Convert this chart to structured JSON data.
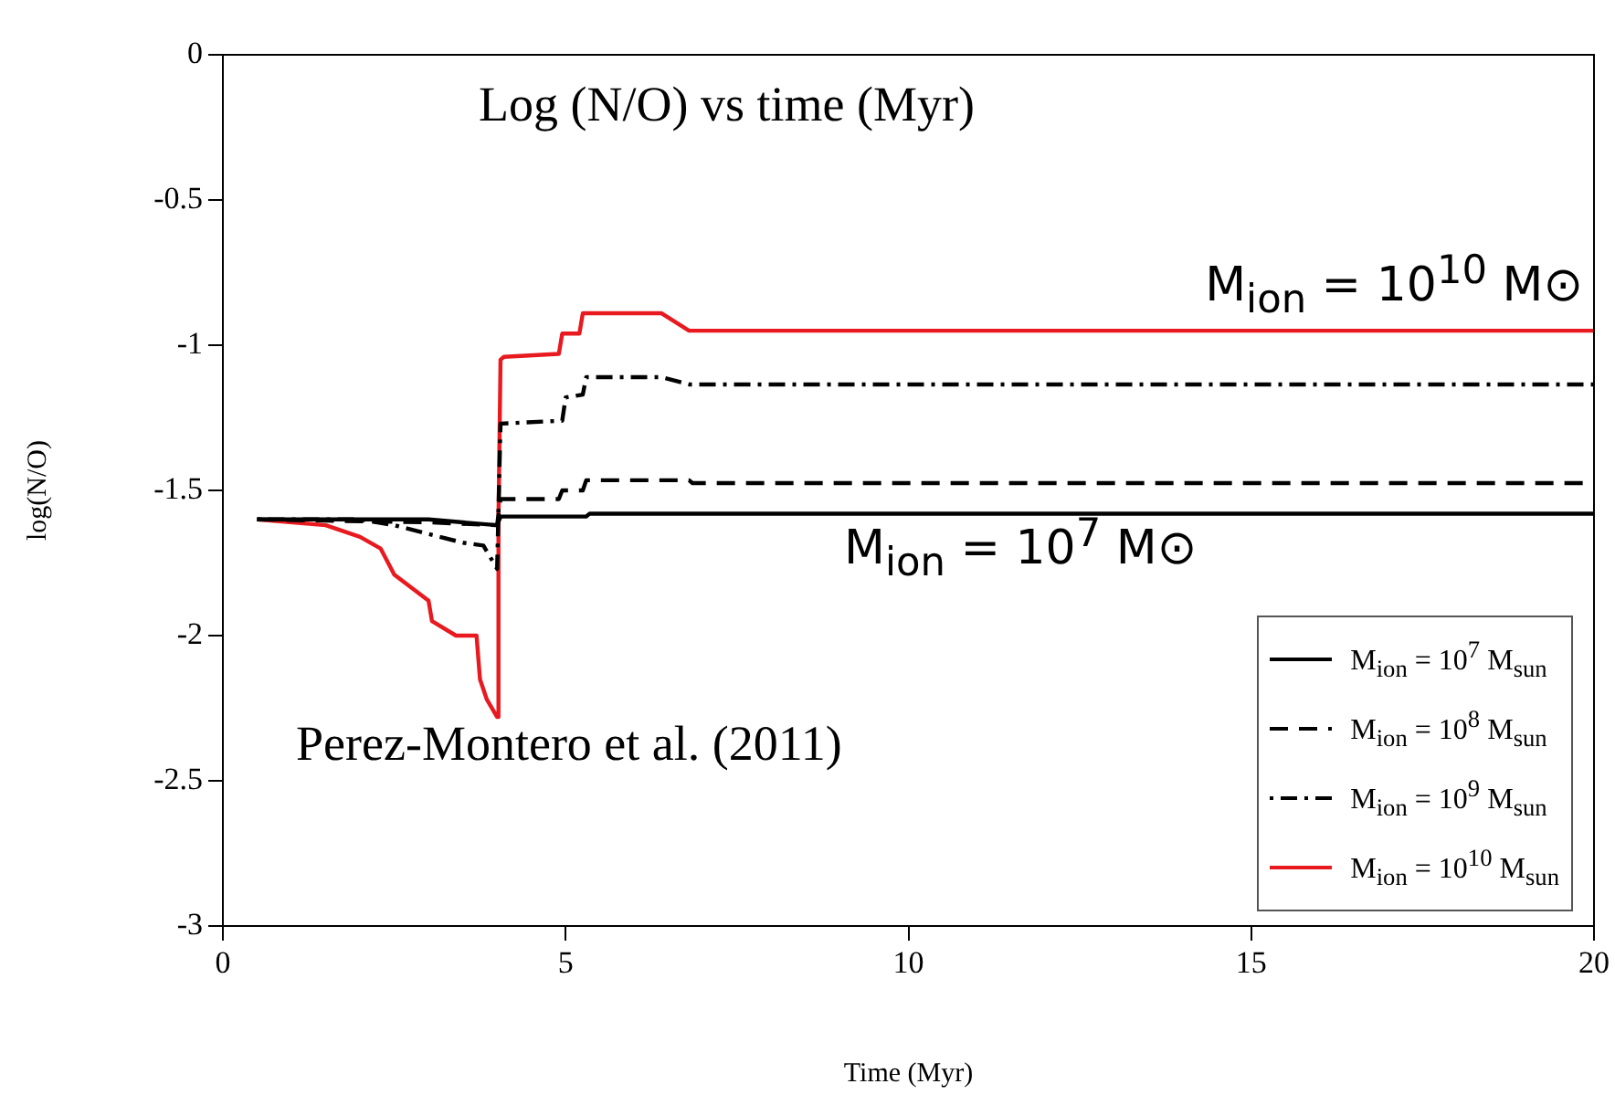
{
  "chart_data": {
    "type": "line",
    "title": "Log (N/O) vs time (Myr)",
    "xlabel": "Time (Myr)",
    "ylabel": "log(N/O)",
    "xlim": [
      0,
      20
    ],
    "xticks": [
      0,
      5,
      10,
      15,
      20
    ],
    "ylim": [
      -3,
      0
    ],
    "yticks": [
      -3,
      -2.5,
      -2,
      -1.5,
      -1,
      -0.5,
      0
    ],
    "grid": false,
    "legend": "bottom right",
    "marker": "none",
    "annotations": [
      "M$_{ion}$ = 10$^{10}$ M⊙",
      "M$_{ion}$ = 10$^{7}$ M⊙",
      "Perez-Montero et al. (2011)"
    ],
    "series": [
      {
        "name": "M$_{ion}$ = 10$^{7}$ M$_{sun}$",
        "color": "#000000",
        "line_style": "solid",
        "x": [
          0.5,
          3.0,
          4.0,
          4.05,
          5.3,
          5.35,
          20
        ],
        "values": [
          -1.6,
          -1.6,
          -1.62,
          -1.59,
          -1.59,
          -1.58,
          -1.58
        ]
      },
      {
        "name": "M$_{ion}$ = 10$^{8}$ M$_{sun}$",
        "color": "#000000",
        "line_style": "dashed",
        "x": [
          0.5,
          3.0,
          4.0,
          4.05,
          4.9,
          4.95,
          5.25,
          5.3,
          6.8,
          6.85,
          20
        ],
        "values": [
          -1.6,
          -1.61,
          -1.62,
          -1.53,
          -1.53,
          -1.5,
          -1.5,
          -1.465,
          -1.465,
          -1.475,
          -1.475
        ]
      },
      {
        "name": "M$_{ion}$ = 10$^{9}$ M$_{sun}$",
        "color": "#000000",
        "line_style": "dotted",
        "x": [
          0.5,
          2.0,
          2.5,
          3.0,
          3.5,
          3.8,
          3.9,
          4.0,
          4.05,
          4.95,
          5.0,
          5.25,
          5.3,
          6.4,
          6.8,
          20
        ],
        "values": [
          -1.6,
          -1.6,
          -1.62,
          -1.65,
          -1.68,
          -1.69,
          -1.73,
          -1.77,
          -1.27,
          -1.26,
          -1.18,
          -1.17,
          -1.11,
          -1.11,
          -1.135,
          -1.135
        ]
      },
      {
        "name": "M$_{ion}$ = 10$^{10}$ M$_{sun}$",
        "color": "#e8191f",
        "line_style": "solid",
        "x": [
          0.5,
          1.5,
          2.0,
          2.3,
          2.5,
          3.0,
          3.05,
          3.4,
          3.7,
          3.75,
          3.85,
          4.0,
          4.02,
          4.05,
          4.1,
          4.9,
          4.95,
          5.2,
          5.25,
          6.4,
          6.8,
          20
        ],
        "values": [
          -1.6,
          -1.62,
          -1.66,
          -1.7,
          -1.79,
          -1.88,
          -1.95,
          -2.0,
          -2.0,
          -2.15,
          -2.22,
          -2.28,
          -1.6,
          -1.05,
          -1.04,
          -1.03,
          -0.96,
          -0.96,
          -0.89,
          -0.89,
          -0.95,
          -0.95
        ]
      }
    ]
  }
}
